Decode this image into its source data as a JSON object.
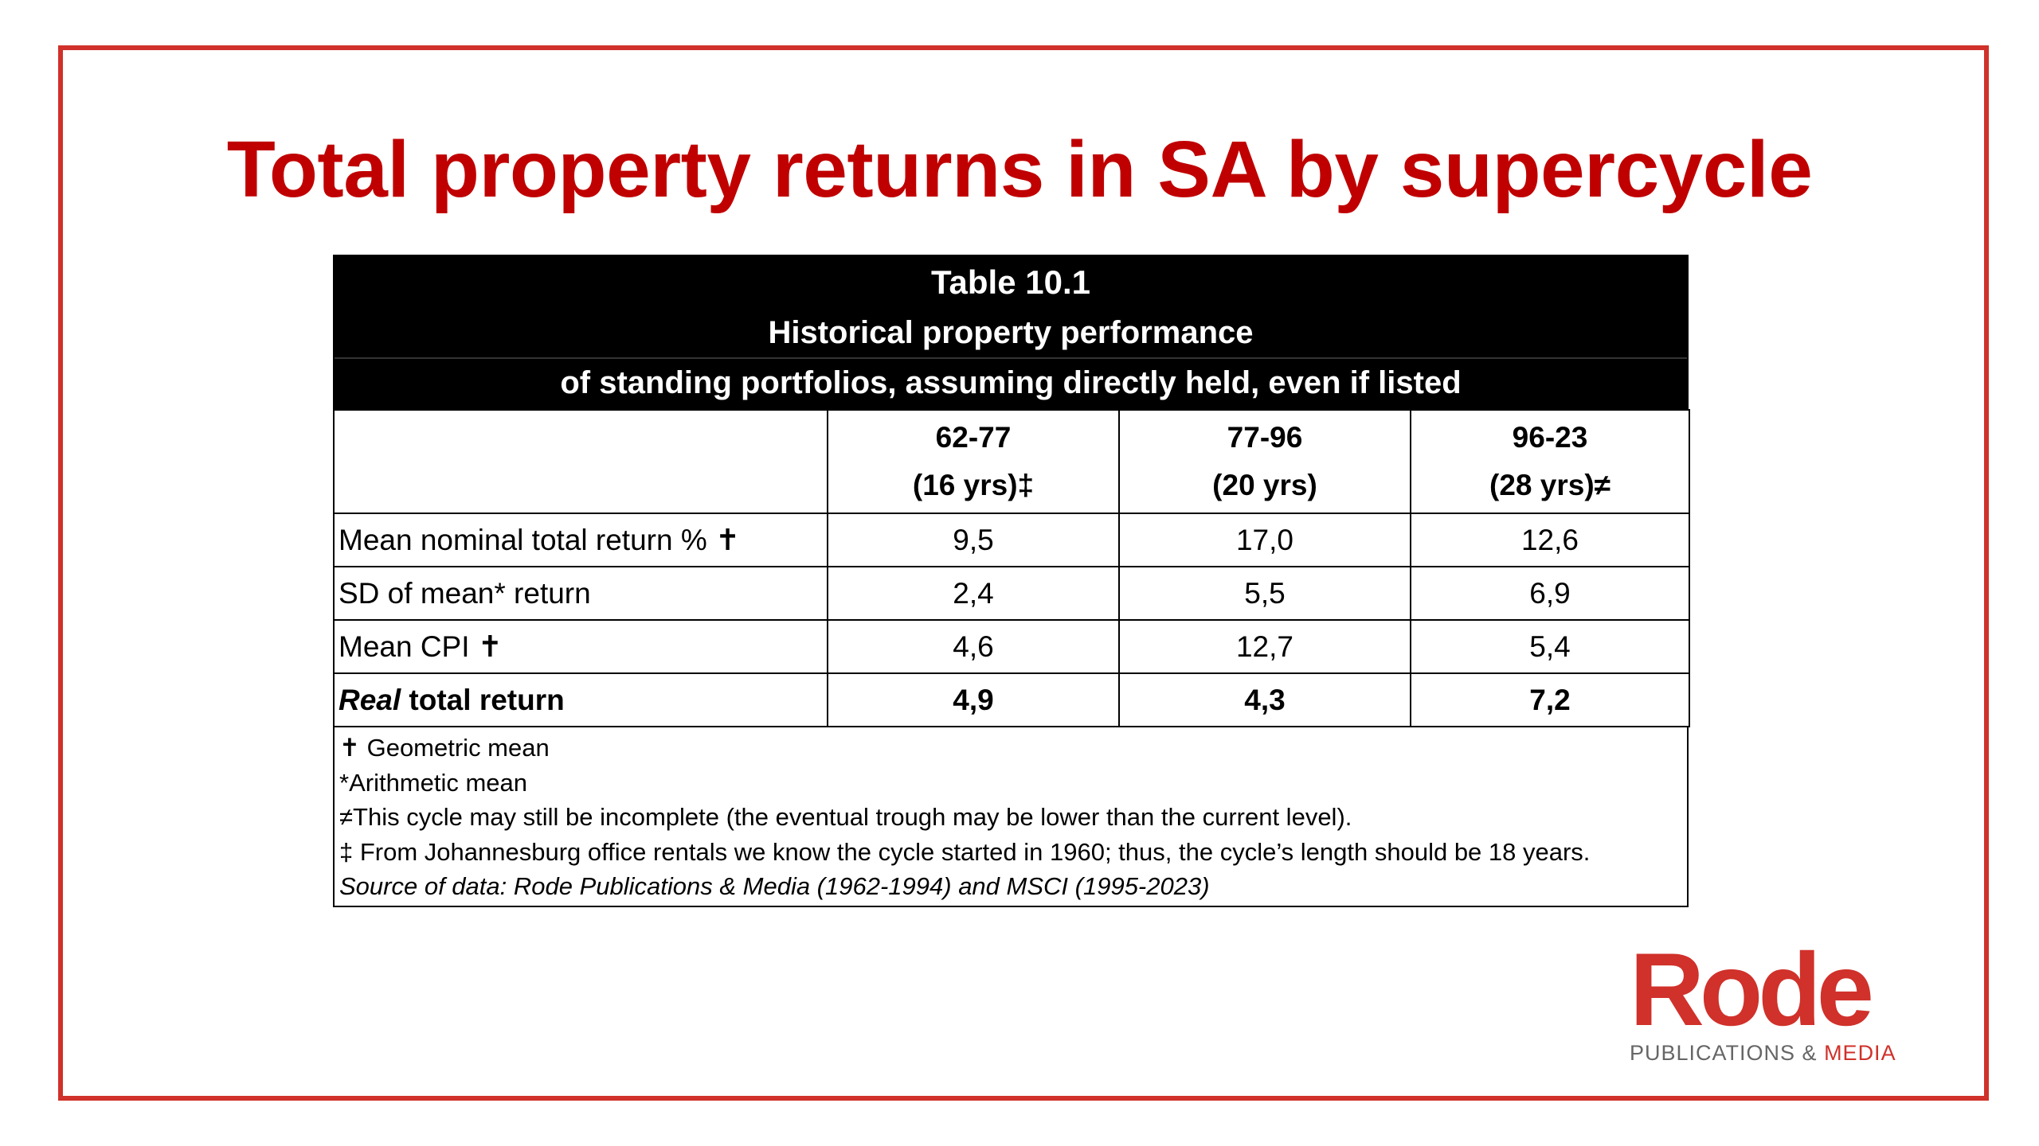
{
  "title": "Total property returns in SA by supercycle",
  "table": {
    "header_lines": [
      "Table 10.1",
      "Historical property performance",
      "of standing portfolios, assuming directly held, even if listed"
    ],
    "columns": [
      {
        "period": "62-77",
        "years": "(16 yrs)‡"
      },
      {
        "period": "77-96",
        "years": "(20 yrs)"
      },
      {
        "period": "96-23",
        "years": "(28 yrs)≠"
      }
    ],
    "rows": [
      {
        "label": "Mean nominal total return % ✝",
        "values": [
          "9,5",
          "17,0",
          "12,6"
        ]
      },
      {
        "label": "SD of mean* return",
        "values": [
          "2,4",
          "5,5",
          "6,9"
        ]
      },
      {
        "label": "Mean CPI ✝",
        "values": [
          "4,6",
          "12,7",
          "5,4"
        ]
      },
      {
        "label_em": "Real",
        "label_rest": " total return",
        "values": [
          "4,9",
          "4,3",
          "7,2"
        ]
      }
    ],
    "notes": [
      "✝ Geometric mean",
      "*Arithmetic mean",
      "≠This cycle may still be incomplete (the eventual trough may be lower than the current level).",
      "‡ From Johannesburg office rentals we know the cycle started in 1960; thus, the cycle’s length should be 18 years."
    ],
    "source": "Source of data: Rode Publications & Media (1962-1994) and MSCI (1995-2023)"
  },
  "logo": {
    "word": "Rode",
    "sub_main": "PUBLICATIONS & ",
    "sub_accent": "MEDIA"
  },
  "colors": {
    "accent": "#c00000",
    "frame": "#d0312a",
    "header_bg": "#000000"
  }
}
